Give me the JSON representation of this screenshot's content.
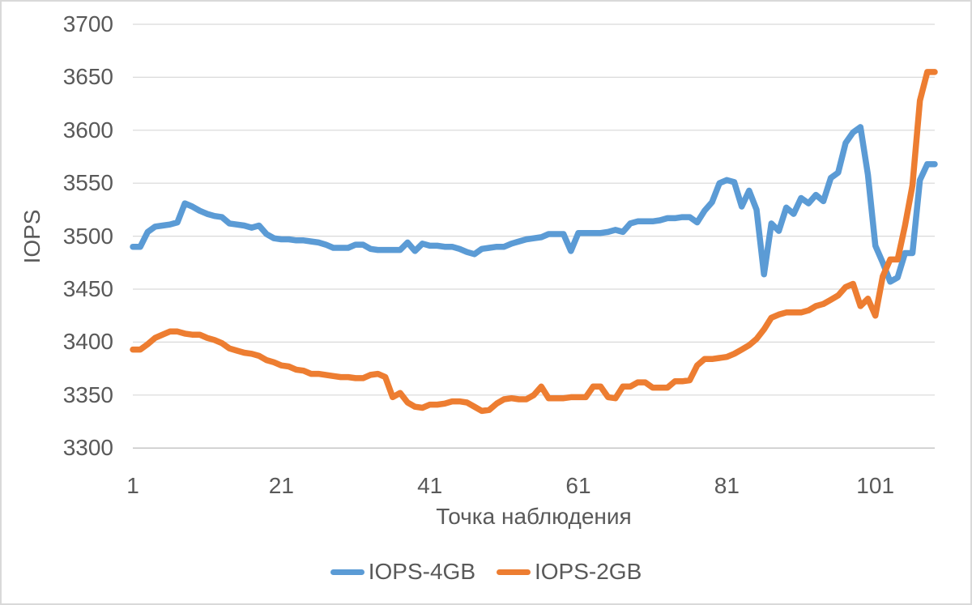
{
  "colors": {
    "background": "#ffffff",
    "text": "#595959",
    "grid": "#d9d9d9",
    "axis_line": "#c6c6c6",
    "series_blue": "#5B9BD5",
    "series_orange": "#ED7D31",
    "frame": "#d9d9d9"
  },
  "chart_data": {
    "type": "line",
    "title": "",
    "xlabel": "Точка наблюдения",
    "ylabel": "IOPS",
    "ylim": [
      3300,
      3700
    ],
    "y_ticks": [
      3700,
      3650,
      3600,
      3550,
      3500,
      3450,
      3400,
      3350,
      3300
    ],
    "x_ticks": [
      1,
      21,
      41,
      61,
      81,
      101
    ],
    "x_start": 1,
    "n_points": 109,
    "grid": true,
    "legend_position": "bottom",
    "series": [
      {
        "name": "IOPS-4GB",
        "color": "#5B9BD5",
        "values": [
          3490,
          3490,
          3504,
          3509,
          3510,
          3511,
          3513,
          3531,
          3528,
          3524,
          3521,
          3519,
          3518,
          3512,
          3511,
          3510,
          3508,
          3510,
          3502,
          3498,
          3497,
          3497,
          3496,
          3496,
          3495,
          3494,
          3492,
          3489,
          3489,
          3489,
          3492,
          3492,
          3488,
          3487,
          3487,
          3487,
          3487,
          3494,
          3486,
          3493,
          3491,
          3491,
          3490,
          3490,
          3488,
          3485,
          3483,
          3488,
          3489,
          3490,
          3490,
          3493,
          3495,
          3497,
          3498,
          3499,
          3502,
          3502,
          3502,
          3486,
          3503,
          3503,
          3503,
          3503,
          3504,
          3506,
          3504,
          3512,
          3514,
          3514,
          3514,
          3515,
          3517,
          3517,
          3518,
          3518,
          3513,
          3524,
          3532,
          3550,
          3553,
          3551,
          3528,
          3543,
          3525,
          3464,
          3512,
          3505,
          3527,
          3521,
          3536,
          3531,
          3539,
          3533,
          3555,
          3560,
          3588,
          3598,
          3603,
          3558,
          3491,
          3475,
          3457,
          3461,
          3484,
          3484,
          3553,
          3568,
          3568
        ]
      },
      {
        "name": "IOPS-2GB",
        "color": "#ED7D31",
        "values": [
          3393,
          3393,
          3398,
          3404,
          3407,
          3410,
          3410,
          3408,
          3407,
          3407,
          3404,
          3402,
          3399,
          3394,
          3392,
          3390,
          3389,
          3387,
          3383,
          3381,
          3378,
          3377,
          3374,
          3373,
          3370,
          3370,
          3369,
          3368,
          3367,
          3367,
          3366,
          3366,
          3369,
          3370,
          3367,
          3348,
          3352,
          3343,
          3339,
          3338,
          3341,
          3341,
          3342,
          3344,
          3344,
          3343,
          3339,
          3335,
          3336,
          3342,
          3346,
          3347,
          3346,
          3346,
          3350,
          3358,
          3347,
          3347,
          3347,
          3348,
          3348,
          3348,
          3358,
          3358,
          3348,
          3347,
          3358,
          3358,
          3362,
          3362,
          3357,
          3357,
          3357,
          3363,
          3363,
          3364,
          3378,
          3384,
          3384,
          3385,
          3386,
          3389,
          3393,
          3397,
          3403,
          3412,
          3423,
          3426,
          3428,
          3428,
          3428,
          3430,
          3434,
          3436,
          3440,
          3444,
          3452,
          3455,
          3434,
          3441,
          3425,
          3462,
          3478,
          3478,
          3510,
          3548,
          3628,
          3655,
          3655
        ]
      }
    ]
  }
}
